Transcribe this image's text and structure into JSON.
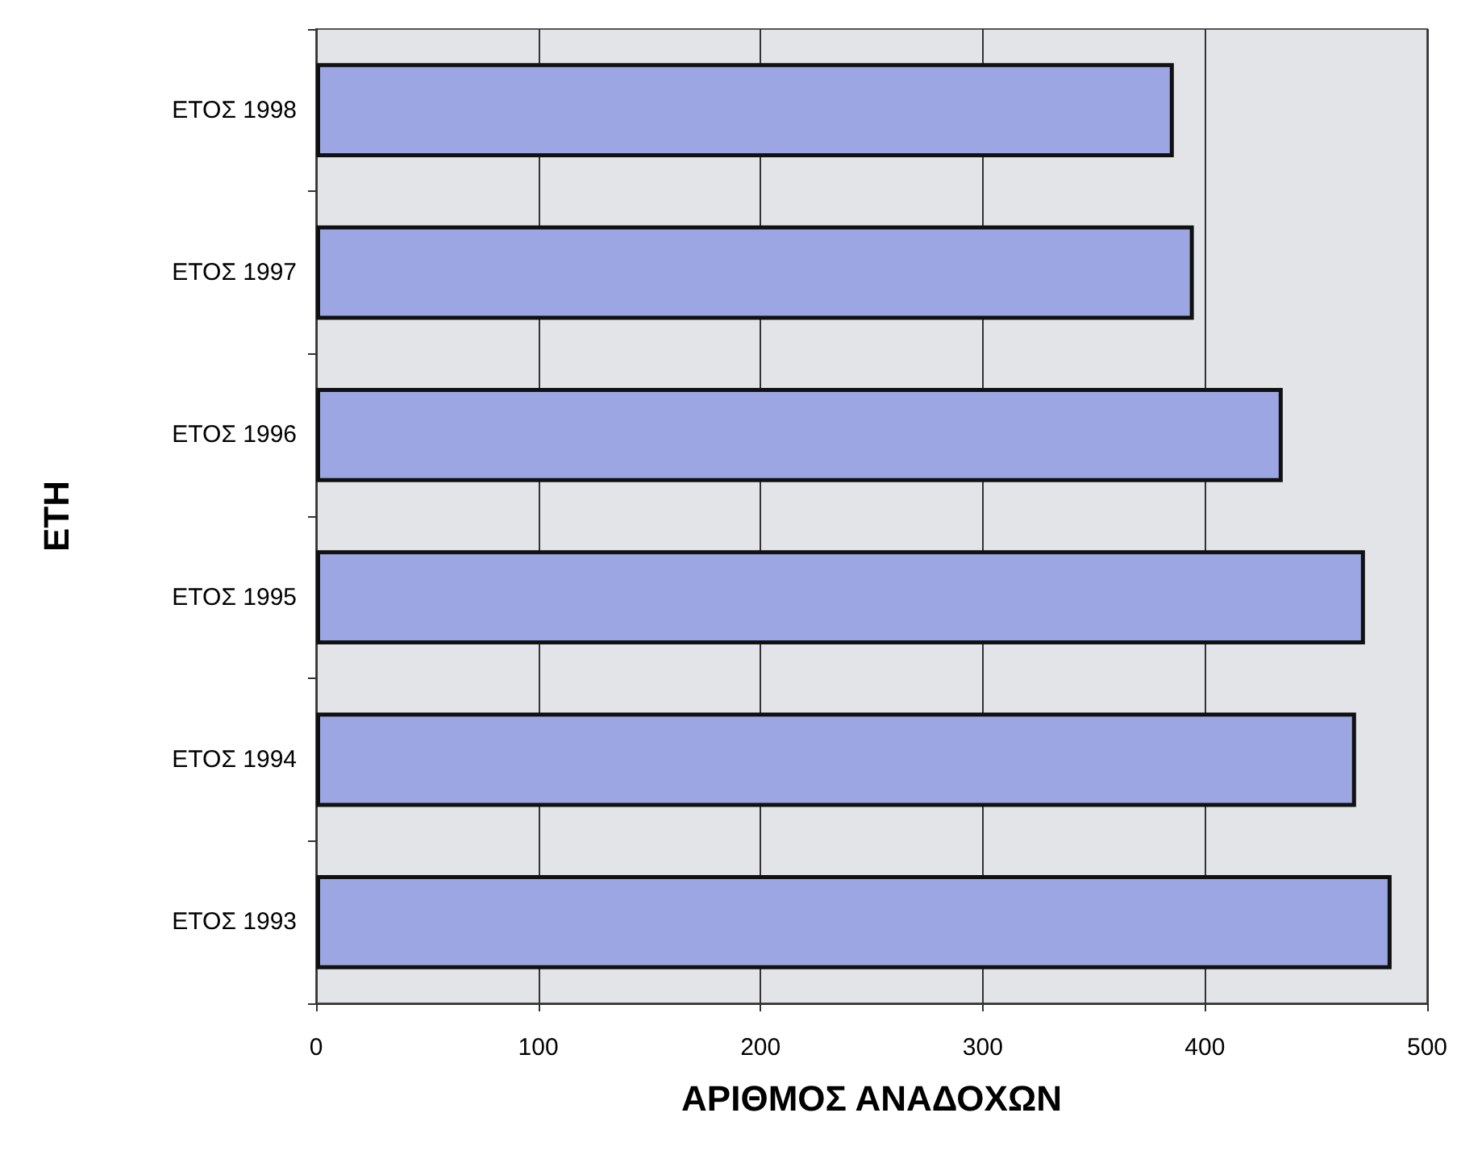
{
  "chart_data": {
    "type": "bar",
    "orientation": "horizontal",
    "xlabel": "ΑΡΙΘΜΟΣ ΑΝΑΔΟΧΩΝ",
    "ylabel": "ΕΤΗ",
    "categories": [
      "ΕΤΟΣ 1998",
      "ΕΤΟΣ 1997",
      "ΕΤΟΣ 1996",
      "ΕΤΟΣ 1995",
      "ΕΤΟΣ 1994",
      "ΕΤΟΣ 1993"
    ],
    "values": [
      386,
      395,
      435,
      472,
      468,
      484
    ],
    "color": "#9ba6e2",
    "xlim": [
      0,
      500
    ],
    "xticks": [
      0,
      100,
      200,
      300,
      400,
      500
    ],
    "grid": "x"
  }
}
